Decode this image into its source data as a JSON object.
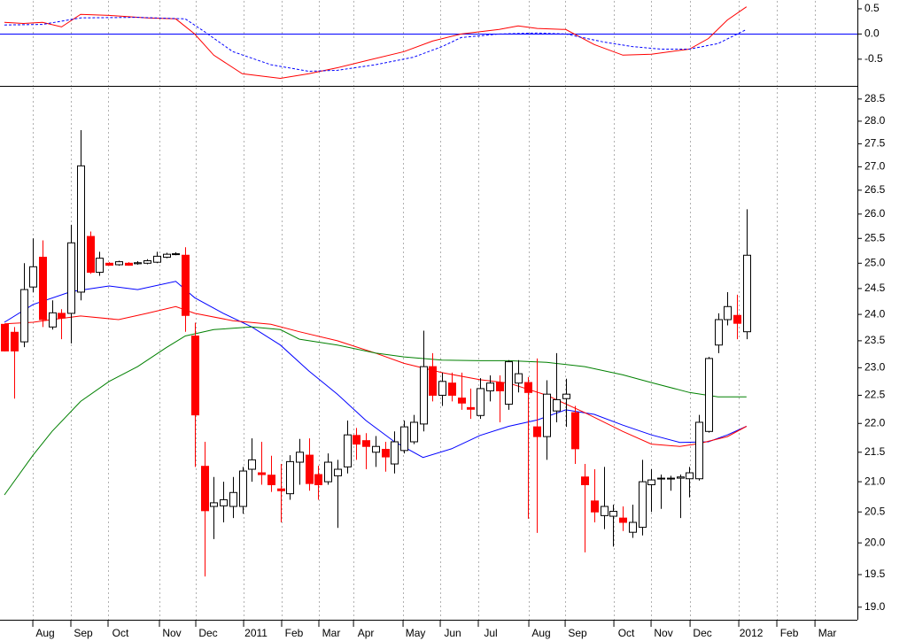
{
  "chart_data": [
    {
      "type": "line",
      "xlim": [
        -0.47,
        89.66
      ],
      "ylim": [
        -1.03,
        0.675
      ],
      "yticks": [
        -0.5,
        {
          "value": 0,
          "label": "0.0"
        },
        0.5
      ],
      "grid": true,
      "zero_line": true,
      "series": [
        {
          "color": "#ff0000",
          "dash": false,
          "x": [
            0,
            2,
            4,
            6,
            8,
            11,
            15,
            18,
            20,
            22,
            25,
            29,
            32,
            35,
            38,
            42,
            45,
            48,
            52,
            54,
            56,
            59,
            62,
            65,
            68,
            72,
            74,
            76,
            78
          ],
          "values": [
            0.23,
            0.21,
            0.23,
            0.14,
            0.39,
            0.37,
            0.32,
            0.3,
            0.0,
            -0.42,
            -0.79,
            -0.88,
            -0.79,
            -0.67,
            -0.53,
            -0.35,
            -0.14,
            0.0,
            0.09,
            0.16,
            0.11,
            0.09,
            -0.21,
            -0.42,
            -0.4,
            -0.3,
            -0.09,
            0.28,
            0.54
          ]
        },
        {
          "color": "#0000ff",
          "dash": true,
          "x": [
            0,
            4,
            8,
            14,
            19,
            21,
            24,
            28,
            32,
            35,
            39,
            43,
            46,
            48,
            52,
            56,
            59,
            63,
            66,
            69,
            72,
            75,
            78
          ],
          "values": [
            0.18,
            0.19,
            0.32,
            0.33,
            0.3,
            0.05,
            -0.35,
            -0.61,
            -0.74,
            -0.72,
            -0.61,
            -0.46,
            -0.25,
            -0.07,
            0,
            0.02,
            0,
            -0.16,
            -0.25,
            -0.3,
            -0.3,
            -0.19,
            0.09
          ]
        }
      ]
    },
    {
      "type": "candlestick",
      "xlim": [
        -0.47,
        89.66
      ],
      "ylim": [
        18.81,
        28.78
      ],
      "log_scale": true,
      "grid": true,
      "up_color": "#ffffff",
      "down_color": "#ff0000",
      "yticks": [
        {
          "value": 19,
          "label": "19.0"
        },
        19.5,
        {
          "value": 20,
          "label": "20.0"
        },
        20.5,
        {
          "value": 21,
          "label": "21.0"
        },
        21.5,
        {
          "value": 22,
          "label": "22.0"
        },
        22.5,
        {
          "value": 23,
          "label": "23.0"
        },
        23.5,
        {
          "value": 24,
          "label": "24.0"
        },
        24.5,
        {
          "value": 25,
          "label": "25.0"
        },
        25.5,
        {
          "value": 26,
          "label": "26.0"
        },
        26.5,
        {
          "value": 27,
          "label": "27.0"
        },
        27.5,
        {
          "value": 28,
          "label": "28.0"
        },
        28.5
      ],
      "xticks": [
        {
          "value": 2.98,
          "label": "Aug"
        },
        {
          "value": 6.98,
          "label": "Sep"
        },
        {
          "value": 10.89,
          "label": "Oct"
        },
        {
          "value": 16.29,
          "label": "Nov"
        },
        {
          "value": 20.11,
          "label": "Dec"
        },
        {
          "value": 25.14,
          "label": "2011"
        },
        {
          "value": 29.14,
          "label": "Feb"
        },
        {
          "value": 33.05,
          "label": "Mar"
        },
        {
          "value": 36.69,
          "label": "Apr"
        },
        {
          "value": 41.9,
          "label": "May"
        },
        {
          "value": 45.81,
          "label": "Jun"
        },
        {
          "value": 49.81,
          "label": "Jul"
        },
        {
          "value": 55.12,
          "label": "Aug"
        },
        {
          "value": 58.94,
          "label": "Sep"
        },
        {
          "value": 64.06,
          "label": "Oct"
        },
        {
          "value": 67.97,
          "label": "Nov"
        },
        {
          "value": 72.07,
          "label": "Dec"
        },
        {
          "value": 77.19,
          "label": "2012"
        },
        {
          "value": 81.19,
          "label": "Feb"
        },
        {
          "value": 85.2,
          "label": "Mar"
        }
      ],
      "x": [
        0,
        1,
        2,
        3,
        4,
        5,
        6,
        7,
        8,
        9,
        10,
        11,
        12,
        13,
        14,
        15,
        16,
        17,
        18,
        19,
        20,
        21,
        22,
        23,
        24,
        25,
        26,
        27,
        28,
        29,
        30,
        31,
        32,
        33,
        34,
        35,
        36,
        37,
        38,
        39,
        40,
        41,
        42,
        43,
        44,
        45,
        46,
        47,
        48,
        49,
        50,
        51,
        52,
        53,
        54,
        55,
        56,
        57,
        58,
        59,
        60,
        61,
        62,
        63,
        64,
        65,
        66,
        67,
        68,
        69,
        70,
        71,
        72,
        73,
        74,
        75,
        76,
        77,
        78
      ],
      "open": [
        23.81,
        23.66,
        23.48,
        24.53,
        25.12,
        23.76,
        24.02,
        24.02,
        24.43,
        25.54,
        24.82,
        25.0,
        24.97,
        25.0,
        24.99,
        25.0,
        25.02,
        25.12,
        25.18,
        25.16,
        23.59,
        21.26,
        20.59,
        20.6,
        20.59,
        20.59,
        21.21,
        21.15,
        21.11,
        20.88,
        20.8,
        21.33,
        21.45,
        21.12,
        21.0,
        21.1,
        21.25,
        21.79,
        21.7,
        21.5,
        21.55,
        21.3,
        21.53,
        21.68,
        21.99,
        23.02,
        22.5,
        22.72,
        22.45,
        22.28,
        22.14,
        22.58,
        22.73,
        22.34,
        22.72,
        22.73,
        21.94,
        21.77,
        22.22,
        22.44,
        22.19,
        21.08,
        20.68,
        20.44,
        20.43,
        20.4,
        20.17,
        20.25,
        20.95,
        21.05,
        21.05,
        21.06,
        21.05,
        21.05,
        21.86,
        23.42,
        23.9,
        23.98,
        23.67
      ],
      "high": [
        23.82,
        23.76,
        25.0,
        25.5,
        25.46,
        24.27,
        24.1,
        25.78,
        27.8,
        25.64,
        25.23,
        25.02,
        25.05,
        25.02,
        25.04,
        25.08,
        25.23,
        25.21,
        25.22,
        25.32,
        23.84,
        21.68,
        21.08,
        21.0,
        21.08,
        21.25,
        21.74,
        21.68,
        21.44,
        21.3,
        21.45,
        21.73,
        21.74,
        21.27,
        21.48,
        21.37,
        22.05,
        21.92,
        21.83,
        21.78,
        21.68,
        21.86,
        22.05,
        22.15,
        23.69,
        23.27,
        22.91,
        22.91,
        22.91,
        22.62,
        22.81,
        22.86,
        22.86,
        23.14,
        23.14,
        22.83,
        23.17,
        22.77,
        23.27,
        22.8,
        22.31,
        21.3,
        21.21,
        21.25,
        20.62,
        20.59,
        20.62,
        21.37,
        21.21,
        21.12,
        21.1,
        21.12,
        21.25,
        22.15,
        23.2,
        24.02,
        24.43,
        24.38,
        26.1
      ],
      "low": [
        23.3,
        22.44,
        23.38,
        24.43,
        23.76,
        23.71,
        23.53,
        23.45,
        24.27,
        24.79,
        24.75,
        24.95,
        24.95,
        24.95,
        24.97,
        24.98,
        25.0,
        25.1,
        25.16,
        23.67,
        21.25,
        19.47,
        20.06,
        20.33,
        20.4,
        20.47,
        21.0,
        20.95,
        20.83,
        20.33,
        20.7,
        20.95,
        20.85,
        20.7,
        20.95,
        20.24,
        21.14,
        21.37,
        21.21,
        21.25,
        21.17,
        21.14,
        21.48,
        21.64,
        21.86,
        22.39,
        22.31,
        22.39,
        22.24,
        22.08,
        22.08,
        22.39,
        22.02,
        22.24,
        22.55,
        20.39,
        20.16,
        21.37,
        22.02,
        21.94,
        21.3,
        19.85,
        20.33,
        20.22,
        19.94,
        20.19,
        20.08,
        20.12,
        20.5,
        20.55,
        20.85,
        20.4,
        20.74,
        21.02,
        21.84,
        23.27,
        23.79,
        23.53,
        23.53
      ],
      "close": [
        23.31,
        23.31,
        24.48,
        24.93,
        23.9,
        24.03,
        23.93,
        25.41,
        27.02,
        24.82,
        25.1,
        24.96,
        25.03,
        24.96,
        25.01,
        25.05,
        25.14,
        25.18,
        25.19,
        23.98,
        22.15,
        20.52,
        20.65,
        20.7,
        20.82,
        21.18,
        21.37,
        21.12,
        20.95,
        20.85,
        21.34,
        21.5,
        20.97,
        20.95,
        21.33,
        21.21,
        21.8,
        21.64,
        21.6,
        21.6,
        21.42,
        21.68,
        21.94,
        22.02,
        23.02,
        22.5,
        22.75,
        22.5,
        22.36,
        22.25,
        22.62,
        22.72,
        22.58,
        23.11,
        22.89,
        22.55,
        21.77,
        22.52,
        22.42,
        22.52,
        21.56,
        20.95,
        20.5,
        20.59,
        20.51,
        20.33,
        20.33,
        21.0,
        21.03,
        21.06,
        21.06,
        21.08,
        21.15,
        22.02,
        23.17,
        23.9,
        24.15,
        23.83,
        25.16
      ],
      "lines": [
        {
          "color": "#0000ff",
          "x": [
            0,
            3,
            7,
            11,
            14,
            18,
            20,
            23,
            26,
            29,
            32,
            35,
            38,
            41,
            44,
            47,
            50,
            53,
            56,
            59,
            62,
            65,
            68,
            71,
            74,
            76,
            78
          ],
          "values": [
            23.85,
            24.19,
            24.44,
            24.55,
            24.48,
            24.64,
            24.32,
            24.02,
            23.76,
            23.42,
            22.94,
            22.52,
            22.05,
            21.68,
            21.41,
            21.56,
            21.79,
            21.95,
            22.06,
            22.24,
            22.16,
            21.97,
            21.8,
            21.67,
            21.68,
            21.8,
            21.95
          ]
        },
        {
          "color": "#ff0000",
          "x": [
            0,
            3,
            5,
            8,
            12,
            15,
            18,
            20,
            24,
            28,
            31,
            35,
            39,
            42,
            46,
            50,
            53,
            57,
            61,
            65,
            68,
            71,
            73,
            76,
            78
          ],
          "values": [
            23.82,
            23.85,
            23.9,
            23.97,
            23.9,
            24.02,
            24.15,
            24.02,
            23.88,
            23.81,
            23.67,
            23.5,
            23.27,
            23.08,
            22.91,
            22.78,
            22.72,
            22.5,
            22.19,
            21.86,
            21.64,
            21.6,
            21.65,
            21.77,
            21.95
          ]
        },
        {
          "color": "#008000",
          "x": [
            0,
            3,
            5,
            8,
            11,
            14,
            17,
            19,
            22,
            26,
            29,
            31,
            35,
            39,
            42,
            46,
            50,
            53,
            57,
            61,
            65,
            68,
            72,
            75,
            78
          ],
          "values": [
            20.78,
            21.45,
            21.86,
            22.39,
            22.75,
            23.02,
            23.37,
            23.59,
            23.71,
            23.76,
            23.71,
            23.53,
            23.42,
            23.27,
            23.2,
            23.14,
            23.13,
            23.13,
            23.1,
            23.02,
            22.87,
            22.73,
            22.55,
            22.47,
            22.47
          ]
        }
      ]
    }
  ]
}
